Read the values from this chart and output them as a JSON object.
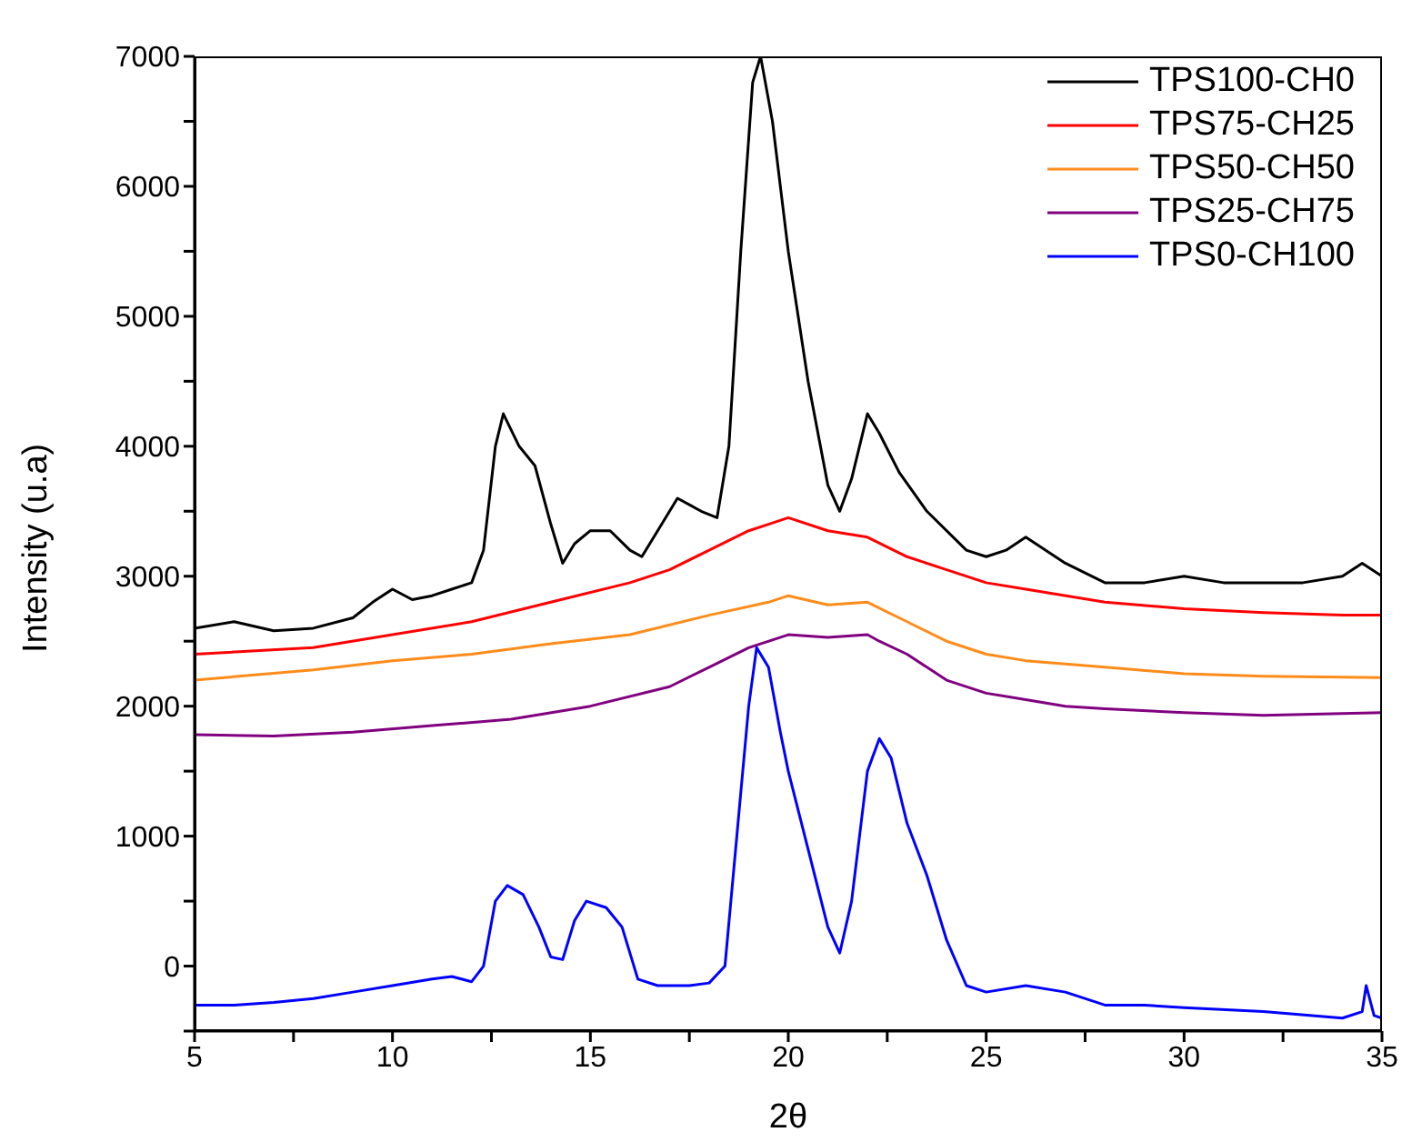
{
  "chart_data": {
    "type": "line",
    "xlabel": "2θ",
    "ylabel": "Intensity (u.a)",
    "xlim": [
      5,
      35
    ],
    "ylim": [
      -500,
      7000
    ],
    "xticks": [
      5,
      {
        "value": 7.5,
        "label": null
      },
      10,
      {
        "value": 12.5,
        "label": null
      },
      15,
      {
        "value": 17.5,
        "label": null
      },
      20,
      {
        "value": 22.5,
        "label": null
      },
      25,
      {
        "value": 27.5,
        "label": null
      },
      30,
      {
        "value": 32.5,
        "label": null
      },
      35
    ],
    "yticks": [
      {
        "value": -500,
        "label": null
      },
      0,
      {
        "value": 500,
        "label": null
      },
      1000,
      {
        "value": 1500,
        "label": null
      },
      2000,
      {
        "value": 2500,
        "label": null
      },
      3000,
      {
        "value": 3500,
        "label": null
      },
      4000,
      {
        "value": 4500,
        "label": null
      },
      5000,
      {
        "value": 5500,
        "label": null
      },
      6000,
      {
        "value": 6500,
        "label": null
      },
      7000
    ],
    "grid": false,
    "legend": "top right",
    "marker": "none",
    "line_style": "solid",
    "series": [
      {
        "name": "TPS100-CH0",
        "color": "#000000",
        "x": [
          5,
          6,
          7,
          8,
          9,
          9.5,
          10,
          10.5,
          11,
          11.5,
          12,
          12.3,
          12.6,
          12.8,
          13.2,
          13.6,
          14,
          14.3,
          14.6,
          15,
          15.5,
          16,
          16.3,
          16.7,
          17.2,
          17.8,
          18.2,
          18.5,
          18.8,
          19.1,
          19.3,
          19.6,
          20,
          20.5,
          21,
          21.3,
          21.6,
          22,
          22.3,
          22.8,
          23.5,
          24.5,
          25,
          25.5,
          26,
          27,
          28,
          29,
          30,
          31,
          32,
          33,
          34,
          34.5,
          35
        ],
        "values": [
          2600,
          2650,
          2580,
          2600,
          2680,
          2800,
          2900,
          2820,
          2850,
          2900,
          2950,
          3200,
          4000,
          4250,
          4000,
          3850,
          3400,
          3100,
          3250,
          3350,
          3350,
          3200,
          3150,
          3350,
          3600,
          3500,
          3450,
          4000,
          5500,
          6800,
          7000,
          6500,
          5500,
          4500,
          3700,
          3500,
          3750,
          4250,
          4100,
          3800,
          3500,
          3200,
          3150,
          3200,
          3300,
          3100,
          2950,
          2950,
          3000,
          2950,
          2950,
          2950,
          3000,
          3100,
          3000
        ]
      },
      {
        "name": "TPS75-CH25",
        "color": "#ff0000",
        "x": [
          5,
          8,
          10,
          12,
          14,
          16,
          17,
          18,
          19,
          19.5,
          20,
          21,
          22,
          23,
          24,
          25,
          26,
          28,
          30,
          32,
          34,
          35
        ],
        "values": [
          2400,
          2450,
          2550,
          2650,
          2800,
          2950,
          3050,
          3200,
          3350,
          3400,
          3450,
          3350,
          3300,
          3150,
          3050,
          2950,
          2900,
          2800,
          2750,
          2720,
          2700,
          2700
        ]
      },
      {
        "name": "TPS50-CH50",
        "color": "#ff8c1a",
        "x": [
          5,
          8,
          10,
          12,
          14,
          16,
          18,
          19.5,
          20,
          21,
          22,
          23,
          24,
          25,
          26,
          28,
          30,
          32,
          35
        ],
        "values": [
          2200,
          2280,
          2350,
          2400,
          2480,
          2550,
          2700,
          2800,
          2850,
          2780,
          2800,
          2650,
          2500,
          2400,
          2350,
          2300,
          2250,
          2230,
          2220
        ]
      },
      {
        "name": "TPS25-CH75",
        "color": "#800080",
        "x": [
          5,
          7,
          9,
          11,
          13,
          15,
          17,
          18,
          19,
          20,
          21,
          22,
          22.3,
          23,
          24,
          25,
          26,
          27,
          28,
          30,
          32,
          35
        ],
        "values": [
          1780,
          1770,
          1800,
          1850,
          1900,
          2000,
          2150,
          2300,
          2450,
          2550,
          2530,
          2550,
          2500,
          2400,
          2200,
          2100,
          2050,
          2000,
          1980,
          1950,
          1930,
          1950
        ]
      },
      {
        "name": "TPS0-CH100",
        "color": "#0000ff",
        "x": [
          5,
          6,
          7,
          8,
          9,
          10,
          11,
          11.5,
          12,
          12.3,
          12.6,
          12.9,
          13.3,
          13.7,
          14,
          14.3,
          14.6,
          14.9,
          15.4,
          15.8,
          16.2,
          16.7,
          17.5,
          18,
          18.4,
          18.7,
          19,
          19.2,
          19.5,
          19.8,
          20,
          20.5,
          21,
          21.3,
          21.6,
          22,
          22.3,
          22.6,
          23,
          23.5,
          24,
          24.5,
          25,
          26,
          27,
          28,
          29,
          30,
          32,
          34,
          34.5,
          34.6,
          34.8,
          35
        ],
        "values": [
          -300,
          -300,
          -280,
          -250,
          -200,
          -150,
          -100,
          -80,
          -120,
          0,
          500,
          620,
          550,
          300,
          70,
          50,
          350,
          500,
          450,
          300,
          -100,
          -150,
          -150,
          -130,
          0,
          1000,
          2000,
          2450,
          2300,
          1800,
          1500,
          900,
          300,
          100,
          500,
          1500,
          1750,
          1600,
          1100,
          700,
          200,
          -150,
          -200,
          -150,
          -200,
          -300,
          -300,
          -320,
          -350,
          -400,
          -350,
          -150,
          -380,
          -400
        ]
      }
    ]
  }
}
